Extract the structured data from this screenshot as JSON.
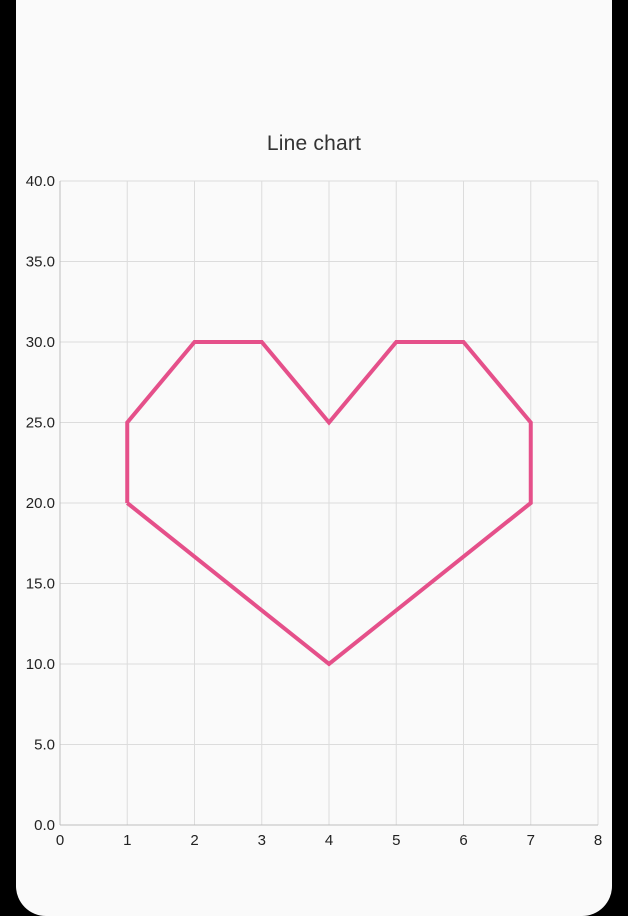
{
  "chart_data": {
    "type": "line",
    "title": "Line chart",
    "xlabel": "",
    "ylabel": "",
    "xlim": [
      0,
      8
    ],
    "ylim": [
      0,
      40
    ],
    "x_ticks": [
      "0",
      "1",
      "2",
      "3",
      "4",
      "5",
      "6",
      "7",
      "8"
    ],
    "y_ticks": [
      "0.0",
      "5.0",
      "10.0",
      "15.0",
      "20.0",
      "25.0",
      "30.0",
      "35.0",
      "40.0"
    ],
    "grid": true,
    "legend": "none",
    "series": [
      {
        "color": "#e5508a",
        "points": [
          [
            1,
            20
          ],
          [
            1,
            25
          ],
          [
            2,
            30
          ],
          [
            3,
            30
          ],
          [
            4,
            25
          ],
          [
            5,
            30
          ],
          [
            6,
            30
          ],
          [
            7,
            25
          ],
          [
            7,
            20
          ],
          [
            4,
            10
          ],
          [
            1,
            20
          ]
        ]
      }
    ],
    "colors": {
      "grid": "#dcdcdc",
      "axis": "#bdbdbd",
      "background": "#fafafa"
    }
  }
}
